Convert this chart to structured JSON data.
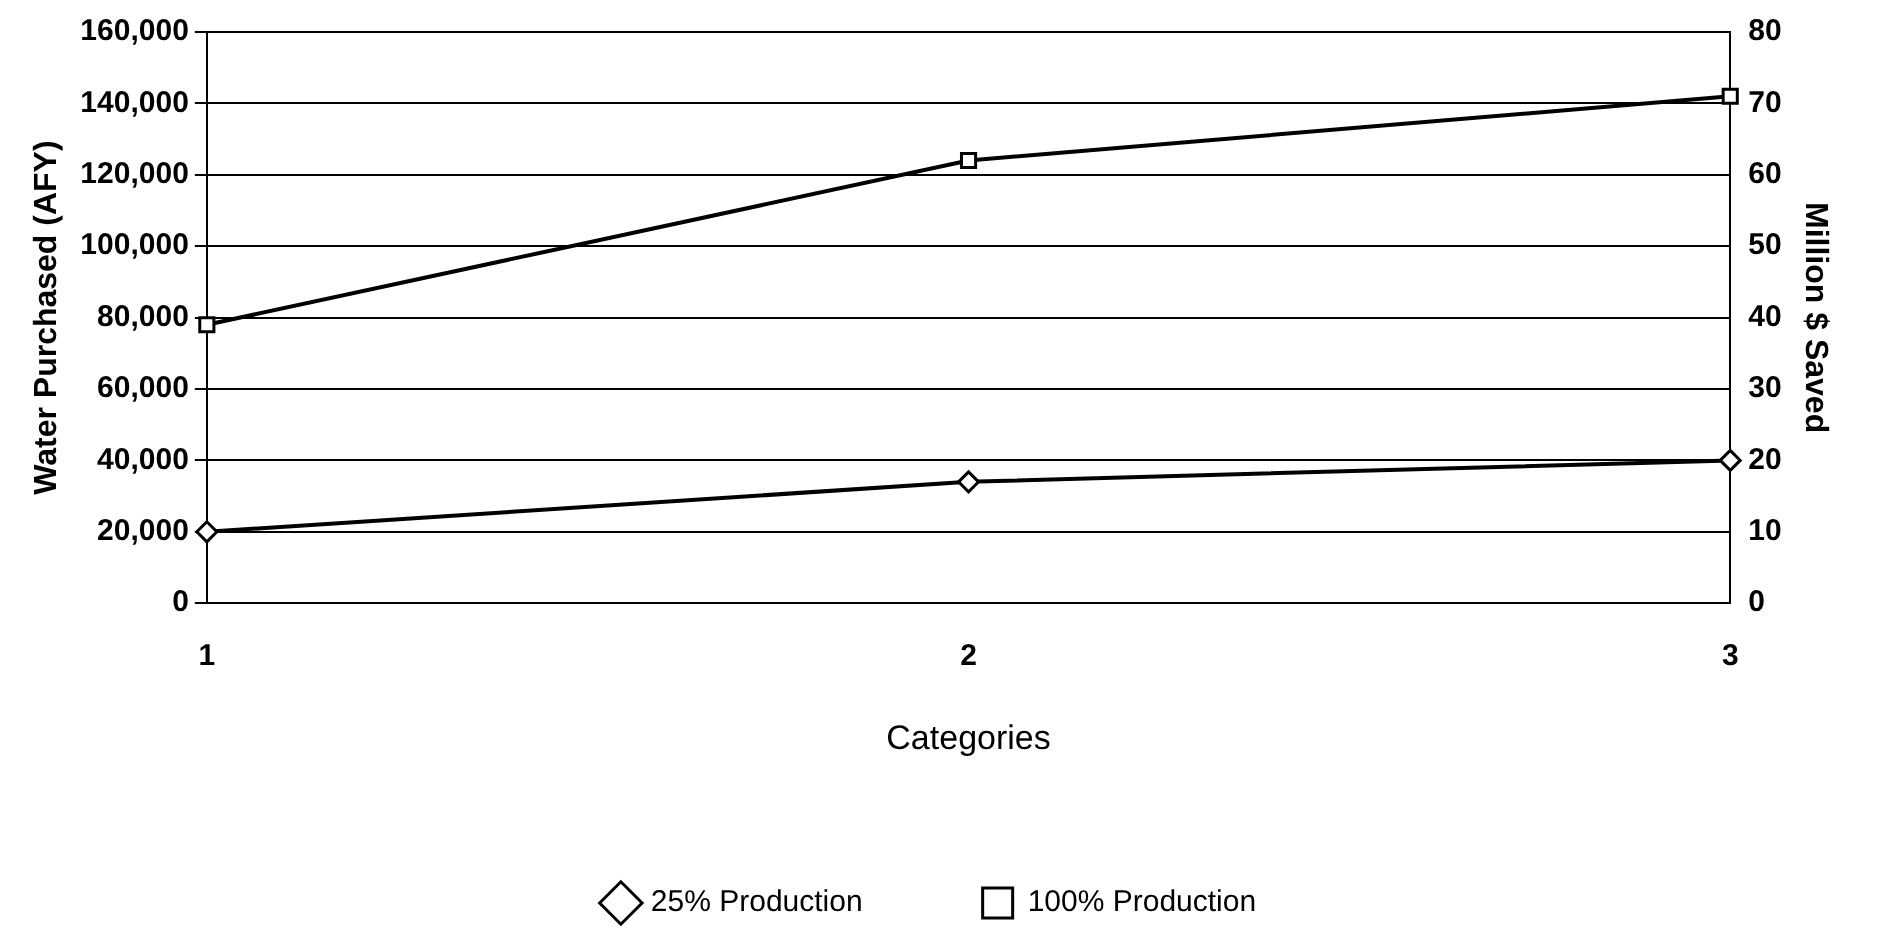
{
  "chart_data": {
    "type": "line",
    "xlabel": "Categories",
    "ylabel": "Water Purchased (AFY)",
    "y2label": "Million $ Saved",
    "categories": [
      "1",
      "2",
      "3"
    ],
    "series": [
      {
        "name": "25% Production",
        "color": "#000000",
        "marker": "diamond",
        "axis": "y2",
        "values": [
          10,
          17,
          20
        ]
      },
      {
        "name": "100% Production",
        "color": "#000000",
        "marker": "square",
        "axis": "y2",
        "values": [
          39,
          62,
          71
        ]
      }
    ],
    "ylim": [
      0,
      160000
    ],
    "yticks": [
      {
        "value": 0,
        "label": "0"
      },
      {
        "value": 20000,
        "label": "20,000"
      },
      {
        "value": 40000,
        "label": "40,000"
      },
      {
        "value": 60000,
        "label": "60,000"
      },
      {
        "value": 80000,
        "label": "80,000"
      },
      {
        "value": 100000,
        "label": "100,000"
      },
      {
        "value": 120000,
        "label": "120,000"
      },
      {
        "value": 140000,
        "label": "140,000"
      },
      {
        "value": 160000,
        "label": "160,000"
      }
    ],
    "y2lim": [
      0,
      80
    ],
    "y2ticks": [
      0,
      10,
      20,
      30,
      40,
      50,
      60,
      70,
      80
    ],
    "grid": "y",
    "legend": "bottom",
    "line_style": "solid"
  }
}
